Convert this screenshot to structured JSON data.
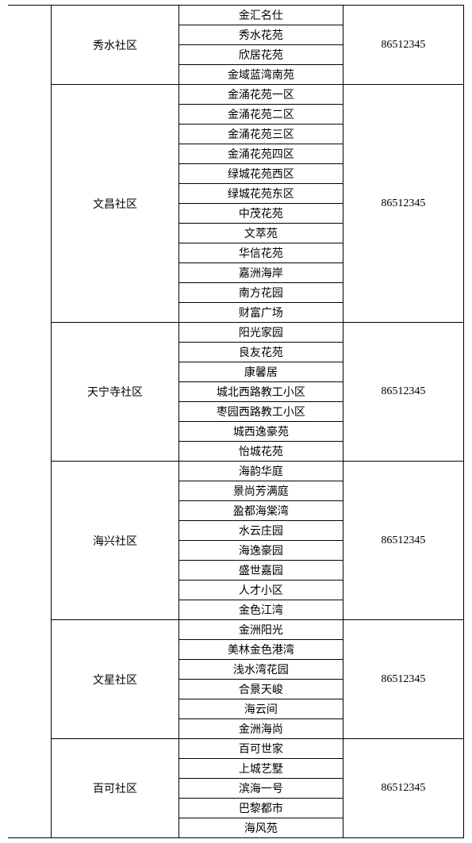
{
  "groups": [
    {
      "community": "秀水社区",
      "phone": "86512345",
      "estates": [
        "金汇名仕",
        "秀水花苑",
        "欣居花苑",
        "金域蓝湾南苑"
      ]
    },
    {
      "community": "文昌社区",
      "phone": "86512345",
      "estates": [
        "金涌花苑一区",
        "金涌花苑二区",
        "金涌花苑三区",
        "金涌花苑四区",
        "绿城花苑西区",
        "绿城花苑东区",
        "中茂花苑",
        "文萃苑",
        "华信花苑",
        "嘉洲海岸",
        "南方花园",
        "财富广场"
      ]
    },
    {
      "community": "天宁寺社区",
      "phone": "86512345",
      "estates": [
        "阳光家园",
        "良友花苑",
        "康馨居",
        "城北西路教工小区",
        "枣园西路教工小区",
        "城西逸豪苑",
        "怡城花苑"
      ]
    },
    {
      "community": "海兴社区",
      "phone": "86512345",
      "estates": [
        "海韵华庭",
        "景尚芳满庭",
        "盈都海棠湾",
        "水云庄园",
        "海逸豪园",
        "盛世嘉园",
        "人才小区",
        "金色江湾"
      ]
    },
    {
      "community": "文星社区",
      "phone": "86512345",
      "estates": [
        "金洲阳光",
        "美林金色港湾",
        "浅水湾花园",
        "合景天峻",
        "海云间",
        "金洲海尚"
      ]
    },
    {
      "community": "百可社区",
      "phone": "86512345",
      "estates": [
        "百可世家",
        "上城艺墅",
        "滨海一号",
        "巴黎都市",
        "海风苑"
      ]
    }
  ]
}
